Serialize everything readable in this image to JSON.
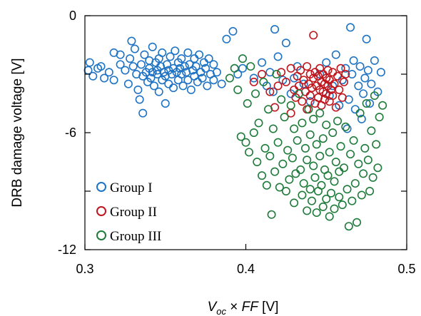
{
  "chart_data": {
    "type": "scatter",
    "title": "",
    "xlabel": {
      "var1": "V",
      "sub1": "oc",
      "times": " × ",
      "var2": "FF",
      "unit": " [V]"
    },
    "ylabel": "DRB damage voltage [V]",
    "xlim": [
      0.3,
      0.5
    ],
    "ylim": [
      -12,
      0
    ],
    "xticks": [
      {
        "value": 0.3,
        "label": "0.3"
      },
      {
        "value": 0.4,
        "label": "0.4"
      },
      {
        "value": 0.5,
        "label": "0.5"
      }
    ],
    "yticks": [
      {
        "value": 0,
        "label": "0"
      },
      {
        "value": -3,
        "label": ""
      },
      {
        "value": -6,
        "label": "-6"
      },
      {
        "value": -9,
        "label": ""
      },
      {
        "value": -12,
        "label": "-12"
      }
    ],
    "grid": false,
    "legend_position": "bottom-left",
    "series": [
      {
        "name": "Group I",
        "color": "#1f73c4",
        "marker": "open-circle",
        "points": [
          [
            0.302,
            -2.8
          ],
          [
            0.305,
            -3.1
          ],
          [
            0.303,
            -2.4
          ],
          [
            0.31,
            -2.6
          ],
          [
            0.312,
            -3.2
          ],
          [
            0.308,
            -2.7
          ],
          [
            0.315,
            -2.9
          ],
          [
            0.318,
            -3.3
          ],
          [
            0.318,
            -1.9
          ],
          [
            0.322,
            -2.0
          ],
          [
            0.322,
            -2.5
          ],
          [
            0.325,
            -2.8
          ],
          [
            0.327,
            -3.5
          ],
          [
            0.328,
            -2.2
          ],
          [
            0.329,
            -1.3
          ],
          [
            0.33,
            -2.6
          ],
          [
            0.331,
            -1.7
          ],
          [
            0.332,
            -3.0
          ],
          [
            0.333,
            -3.8
          ],
          [
            0.334,
            -4.3
          ],
          [
            0.335,
            -2.5
          ],
          [
            0.336,
            -5.0
          ],
          [
            0.336,
            -3.1
          ],
          [
            0.337,
            -2.0
          ],
          [
            0.338,
            -2.9
          ],
          [
            0.339,
            -3.4
          ],
          [
            0.34,
            -2.3
          ],
          [
            0.34,
            -2.7
          ],
          [
            0.341,
            -3.2
          ],
          [
            0.342,
            -1.6
          ],
          [
            0.342,
            -2.9
          ],
          [
            0.343,
            -3.6
          ],
          [
            0.344,
            -2.4
          ],
          [
            0.345,
            -2.8
          ],
          [
            0.345,
            -3.0
          ],
          [
            0.346,
            -3.9
          ],
          [
            0.346,
            -2.2
          ],
          [
            0.347,
            -2.6
          ],
          [
            0.348,
            -3.3
          ],
          [
            0.348,
            -1.9
          ],
          [
            0.349,
            -2.9
          ],
          [
            0.35,
            -3.1
          ],
          [
            0.35,
            -4.5
          ],
          [
            0.351,
            -2.5
          ],
          [
            0.352,
            -2.8
          ],
          [
            0.352,
            -3.5
          ],
          [
            0.353,
            -2.1
          ],
          [
            0.354,
            -3.0
          ],
          [
            0.355,
            -2.7
          ],
          [
            0.355,
            -3.7
          ],
          [
            0.356,
            -1.8
          ],
          [
            0.357,
            -2.9
          ],
          [
            0.358,
            -3.3
          ],
          [
            0.358,
            -2.4
          ],
          [
            0.359,
            -2.7
          ],
          [
            0.36,
            -3.0
          ],
          [
            0.36,
            -2.2
          ],
          [
            0.361,
            -3.6
          ],
          [
            0.362,
            -2.6
          ],
          [
            0.363,
            -2.9
          ],
          [
            0.364,
            -1.9
          ],
          [
            0.364,
            -3.3
          ],
          [
            0.365,
            -2.5
          ],
          [
            0.366,
            -3.8
          ],
          [
            0.367,
            -2.8
          ],
          [
            0.368,
            -2.2
          ],
          [
            0.368,
            -3.1
          ],
          [
            0.369,
            -2.6
          ],
          [
            0.37,
            -3.4
          ],
          [
            0.371,
            -2.0
          ],
          [
            0.372,
            -2.9
          ],
          [
            0.373,
            -3.2
          ],
          [
            0.374,
            -2.4
          ],
          [
            0.375,
            -2.7
          ],
          [
            0.376,
            -3.6
          ],
          [
            0.377,
            -2.2
          ],
          [
            0.378,
            -3.0
          ],
          [
            0.38,
            -2.5
          ],
          [
            0.38,
            -3.3
          ],
          [
            0.382,
            -2.9
          ],
          [
            0.385,
            -3.5
          ],
          [
            0.388,
            -1.2
          ],
          [
            0.392,
            -0.8
          ],
          [
            0.395,
            -3.0
          ],
          [
            0.398,
            -2.7
          ],
          [
            0.405,
            -3.2
          ],
          [
            0.41,
            -2.4
          ],
          [
            0.413,
            -3.6
          ],
          [
            0.415,
            -2.9
          ],
          [
            0.417,
            -3.9
          ],
          [
            0.418,
            -0.7
          ],
          [
            0.42,
            -2.1
          ],
          [
            0.423,
            -3.3
          ],
          [
            0.425,
            -1.4
          ],
          [
            0.428,
            -4.0
          ],
          [
            0.43,
            -3.2
          ],
          [
            0.432,
            -2.6
          ],
          [
            0.436,
            -3.5
          ],
          [
            0.44,
            -4.4
          ],
          [
            0.446,
            -3.0
          ],
          [
            0.45,
            -2.4
          ],
          [
            0.452,
            -4.1
          ],
          [
            0.454,
            -3.6
          ],
          [
            0.456,
            -2.0
          ],
          [
            0.458,
            -4.6
          ],
          [
            0.46,
            -3.3
          ],
          [
            0.462,
            -2.7
          ],
          [
            0.463,
            -5.8
          ],
          [
            0.464,
            -4.3
          ],
          [
            0.465,
            -0.6
          ],
          [
            0.466,
            -3.0
          ],
          [
            0.467,
            -2.3
          ],
          [
            0.468,
            -4.8
          ],
          [
            0.47,
            -3.6
          ],
          [
            0.471,
            -2.6
          ],
          [
            0.472,
            -5.3
          ],
          [
            0.473,
            -4.0
          ],
          [
            0.474,
            -3.2
          ],
          [
            0.475,
            -1.2
          ],
          [
            0.476,
            -2.8
          ],
          [
            0.477,
            -4.5
          ],
          [
            0.478,
            -3.5
          ],
          [
            0.48,
            -2.3
          ],
          [
            0.482,
            -3.9
          ],
          [
            0.484,
            -2.9
          ]
        ]
      },
      {
        "name": "Group II",
        "color": "#c0161e",
        "marker": "open-circle",
        "points": [
          [
            0.405,
            -3.4
          ],
          [
            0.41,
            -3.0
          ],
          [
            0.415,
            -3.9
          ],
          [
            0.418,
            -4.7
          ],
          [
            0.42,
            -3.6
          ],
          [
            0.422,
            -2.9
          ],
          [
            0.425,
            -3.4
          ],
          [
            0.428,
            -2.7
          ],
          [
            0.428,
            -5.0
          ],
          [
            0.43,
            -3.8
          ],
          [
            0.431,
            -4.2
          ],
          [
            0.432,
            -3.1
          ],
          [
            0.433,
            -3.6
          ],
          [
            0.434,
            -2.8
          ],
          [
            0.435,
            -4.4
          ],
          [
            0.436,
            -3.3
          ],
          [
            0.437,
            -3.9
          ],
          [
            0.438,
            -2.6
          ],
          [
            0.438,
            -4.8
          ],
          [
            0.439,
            -3.5
          ],
          [
            0.44,
            -3.0
          ],
          [
            0.44,
            -4.1
          ],
          [
            0.441,
            -3.7
          ],
          [
            0.442,
            -1.0
          ],
          [
            0.442,
            -3.2
          ],
          [
            0.443,
            -4.5
          ],
          [
            0.443,
            -2.9
          ],
          [
            0.444,
            -3.6
          ],
          [
            0.445,
            -4.2
          ],
          [
            0.445,
            -3.1
          ],
          [
            0.446,
            -3.8
          ],
          [
            0.446,
            -2.7
          ],
          [
            0.447,
            -4.6
          ],
          [
            0.447,
            -3.4
          ],
          [
            0.448,
            -3.9
          ],
          [
            0.448,
            -3.0
          ],
          [
            0.449,
            -4.3
          ],
          [
            0.449,
            -3.5
          ],
          [
            0.45,
            -3.2
          ],
          [
            0.45,
            -4.0
          ],
          [
            0.451,
            -2.8
          ],
          [
            0.451,
            -3.6
          ],
          [
            0.452,
            -4.4
          ],
          [
            0.452,
            -3.3
          ],
          [
            0.453,
            -3.8
          ],
          [
            0.454,
            -2.9
          ],
          [
            0.454,
            -4.1
          ],
          [
            0.455,
            -3.5
          ],
          [
            0.456,
            -4.7
          ],
          [
            0.457,
            -3.1
          ],
          [
            0.458,
            -3.8
          ],
          [
            0.459,
            -2.7
          ],
          [
            0.46,
            -4.2
          ],
          [
            0.461,
            -3.4
          ],
          [
            0.462,
            -3.0
          ]
        ]
      },
      {
        "name": "Group III",
        "color": "#1e7b3a",
        "marker": "open-circle",
        "points": [
          [
            0.39,
            -3.2
          ],
          [
            0.393,
            -2.7
          ],
          [
            0.395,
            -3.8
          ],
          [
            0.397,
            -6.2
          ],
          [
            0.398,
            -2.2
          ],
          [
            0.4,
            -6.5
          ],
          [
            0.401,
            -4.5
          ],
          [
            0.402,
            -7.0
          ],
          [
            0.403,
            -2.6
          ],
          [
            0.405,
            -6.0
          ],
          [
            0.406,
            -4.0
          ],
          [
            0.407,
            -7.5
          ],
          [
            0.408,
            -5.5
          ],
          [
            0.41,
            -8.2
          ],
          [
            0.411,
            -3.4
          ],
          [
            0.412,
            -6.8
          ],
          [
            0.413,
            -8.7
          ],
          [
            0.414,
            -4.8
          ],
          [
            0.415,
            -7.2
          ],
          [
            0.416,
            -10.2
          ],
          [
            0.417,
            -5.8
          ],
          [
            0.418,
            -8.0
          ],
          [
            0.419,
            -3.0
          ],
          [
            0.42,
            -6.5
          ],
          [
            0.421,
            -8.8
          ],
          [
            0.422,
            -4.3
          ],
          [
            0.423,
            -7.6
          ],
          [
            0.424,
            -5.2
          ],
          [
            0.425,
            -9.0
          ],
          [
            0.426,
            -6.9
          ],
          [
            0.427,
            -8.4
          ],
          [
            0.428,
            -4.6
          ],
          [
            0.429,
            -7.3
          ],
          [
            0.43,
            -5.8
          ],
          [
            0.43,
            -9.6
          ],
          [
            0.431,
            -8.1
          ],
          [
            0.432,
            -6.4
          ],
          [
            0.433,
            -4.0
          ],
          [
            0.434,
            -7.9
          ],
          [
            0.435,
            -9.2
          ],
          [
            0.435,
            -5.5
          ],
          [
            0.436,
            -8.6
          ],
          [
            0.437,
            -6.8
          ],
          [
            0.438,
            -10.0
          ],
          [
            0.438,
            -7.4
          ],
          [
            0.439,
            -4.8
          ],
          [
            0.44,
            -8.9
          ],
          [
            0.44,
            -6.1
          ],
          [
            0.441,
            -9.5
          ],
          [
            0.442,
            -7.7
          ],
          [
            0.442,
            -5.3
          ],
          [
            0.443,
            -8.3
          ],
          [
            0.444,
            -10.1
          ],
          [
            0.444,
            -6.6
          ],
          [
            0.445,
            -9.0
          ],
          [
            0.446,
            -7.2
          ],
          [
            0.446,
            -5.0
          ],
          [
            0.447,
            -8.7
          ],
          [
            0.448,
            -9.8
          ],
          [
            0.448,
            -6.3
          ],
          [
            0.449,
            -7.9
          ],
          [
            0.45,
            -9.4
          ],
          [
            0.45,
            -5.6
          ],
          [
            0.451,
            -8.2
          ],
          [
            0.452,
            -10.3
          ],
          [
            0.452,
            -7.0
          ],
          [
            0.453,
            -9.1
          ],
          [
            0.454,
            -6.0
          ],
          [
            0.455,
            -8.5
          ],
          [
            0.455,
            -9.9
          ],
          [
            0.456,
            -7.5
          ],
          [
            0.457,
            -5.4
          ],
          [
            0.458,
            -9.3
          ],
          [
            0.458,
            -8.0
          ],
          [
            0.459,
            -6.7
          ],
          [
            0.46,
            -9.7
          ],
          [
            0.461,
            -7.8
          ],
          [
            0.462,
            -5.7
          ],
          [
            0.463,
            -8.9
          ],
          [
            0.464,
            -10.8
          ],
          [
            0.465,
            -7.1
          ],
          [
            0.466,
            -9.5
          ],
          [
            0.467,
            -6.4
          ],
          [
            0.468,
            -8.6
          ],
          [
            0.469,
            -10.6
          ],
          [
            0.47,
            -7.6
          ],
          [
            0.471,
            -5.0
          ],
          [
            0.472,
            -9.2
          ],
          [
            0.473,
            -8.1
          ],
          [
            0.474,
            -6.8
          ],
          [
            0.475,
            -4.5
          ],
          [
            0.476,
            -7.4
          ],
          [
            0.477,
            -9.0
          ],
          [
            0.478,
            -5.9
          ],
          [
            0.479,
            -8.3
          ],
          [
            0.48,
            -4.1
          ],
          [
            0.481,
            -6.6
          ],
          [
            0.482,
            -7.8
          ],
          [
            0.483,
            -5.2
          ],
          [
            0.485,
            -4.6
          ]
        ]
      }
    ]
  }
}
